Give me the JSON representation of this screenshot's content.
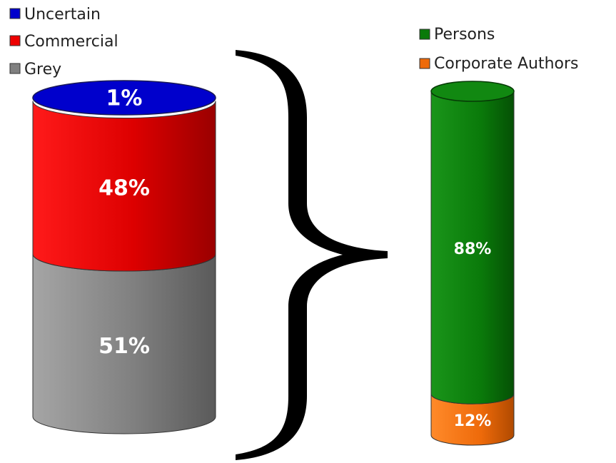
{
  "chart_data": [
    {
      "type": "bar",
      "stacked": true,
      "series": [
        {
          "name": "Uncertain",
          "value": 1,
          "label": "1%",
          "color": "#0000cc"
        },
        {
          "name": "Commercial",
          "value": 48,
          "label": "48%",
          "color": "#ee0000"
        },
        {
          "name": "Grey",
          "value": 51,
          "label": "51%",
          "color": "#808080"
        }
      ]
    },
    {
      "type": "bar",
      "stacked": true,
      "series": [
        {
          "name": "Persons",
          "value": 88,
          "label": "88%",
          "color": "#0a7a0a"
        },
        {
          "name": "Corporate Authors",
          "value": 12,
          "label": "12%",
          "color": "#ee6a0a"
        }
      ]
    }
  ]
}
